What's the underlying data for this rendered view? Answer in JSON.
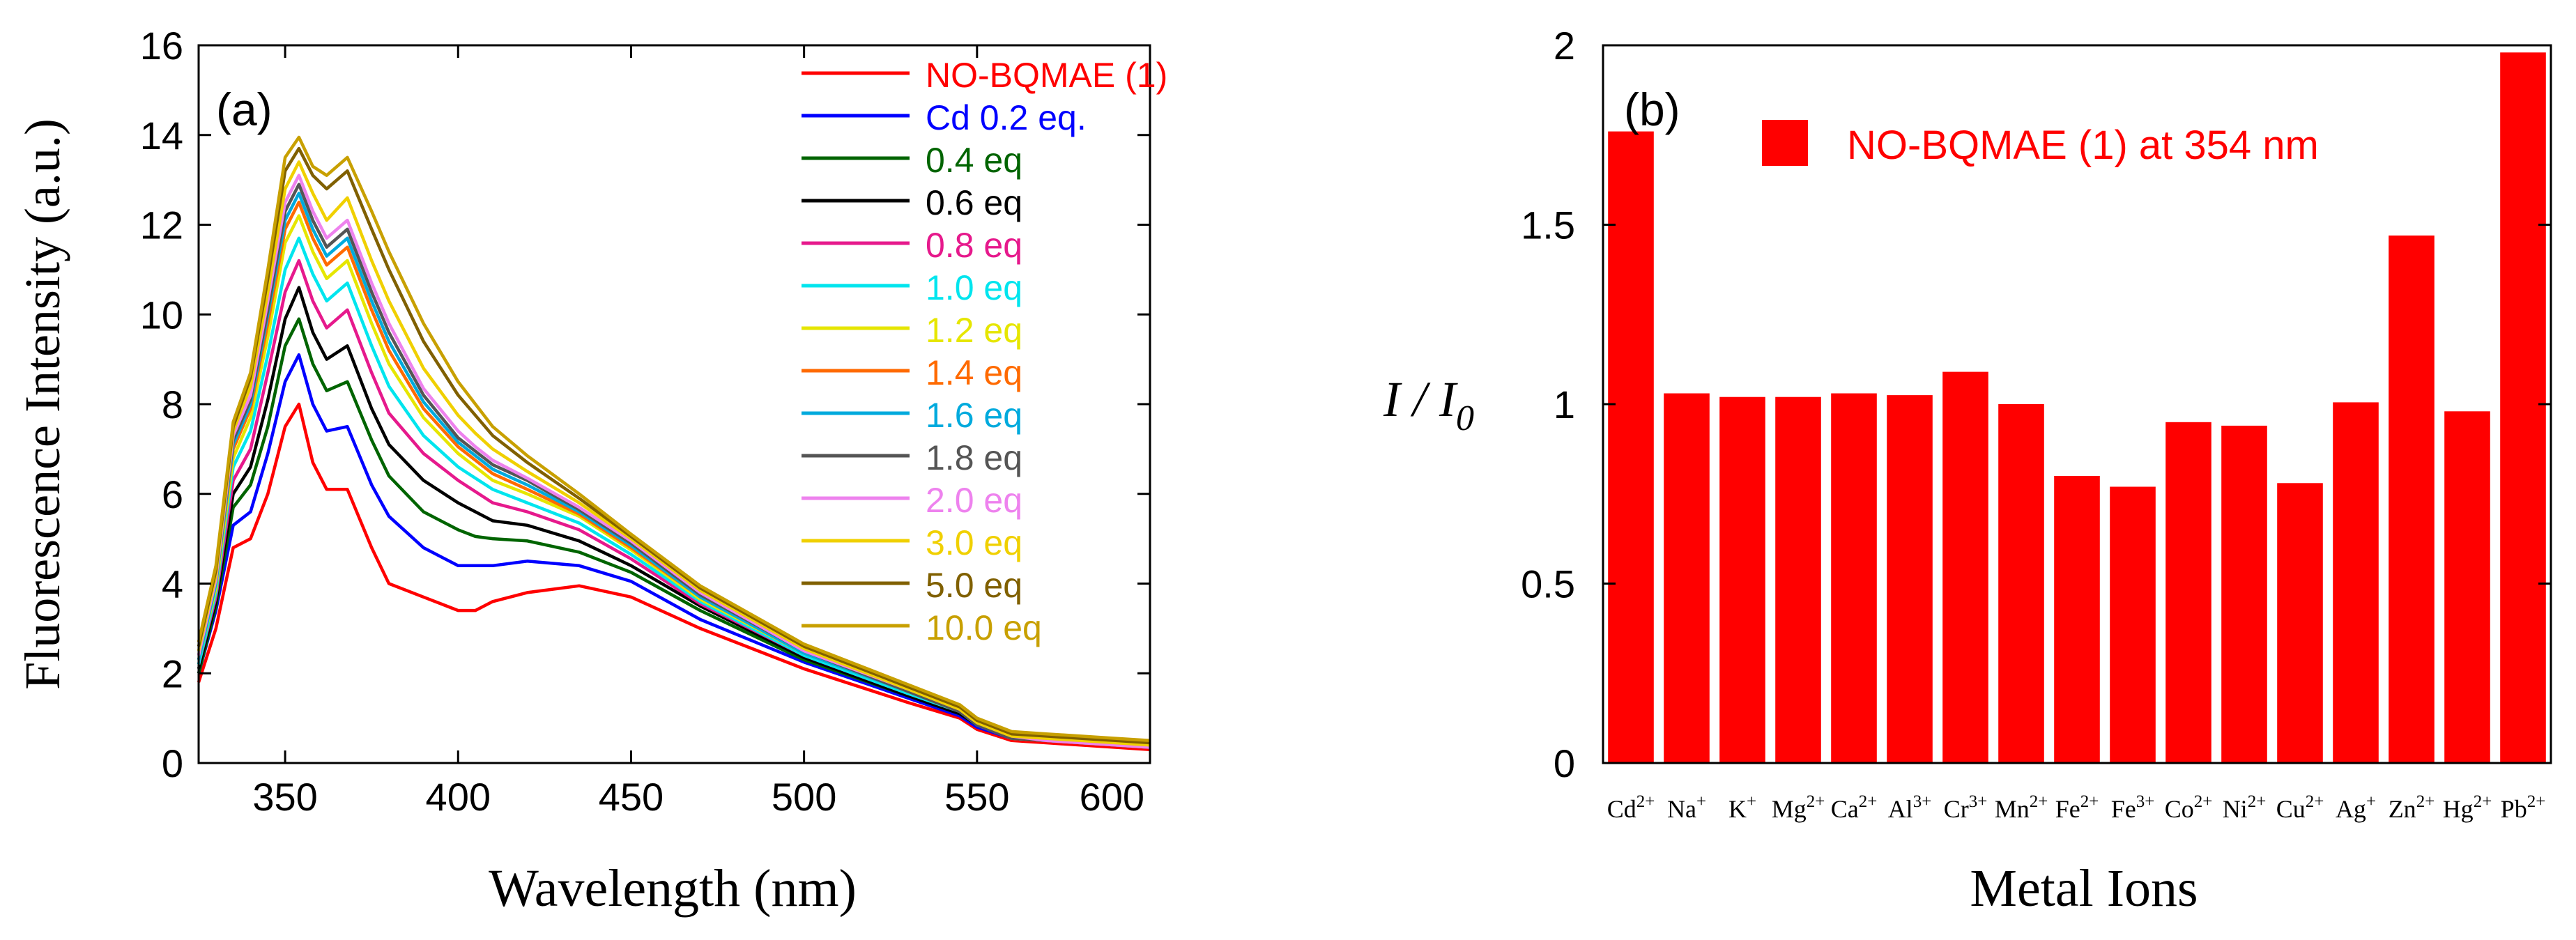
{
  "chart_data": [
    {
      "type": "line",
      "panel_label": "(a)",
      "xlabel": "Wavelength (nm)",
      "ylabel": "Fluorescence Intensity (a.u.)",
      "xlim": [
        325,
        600
      ],
      "ylim": [
        0,
        16
      ],
      "xticks": [
        350,
        400,
        450,
        500,
        550,
        600
      ],
      "yticks": [
        0,
        2,
        4,
        6,
        8,
        10,
        12,
        14,
        16
      ],
      "legend_position": "top-right",
      "x": [
        325,
        330,
        335,
        340,
        345,
        350,
        354,
        358,
        362,
        368,
        375,
        380,
        390,
        400,
        405,
        410,
        420,
        435,
        450,
        470,
        500,
        530,
        545,
        550,
        560,
        570,
        580,
        590,
        600
      ],
      "series": [
        {
          "name": "NO-BQMAE (1)",
          "color": "#ff0000",
          "values": [
            1.8,
            3.0,
            4.8,
            5.0,
            6.0,
            7.5,
            8.0,
            6.7,
            6.1,
            6.1,
            4.8,
            4.0,
            3.7,
            3.4,
            3.4,
            3.6,
            3.8,
            3.95,
            3.7,
            3.0,
            2.1,
            1.35,
            1.0,
            0.75,
            0.5,
            0.45,
            0.4,
            0.35,
            0.3
          ]
        },
        {
          "name": "Cd 0.2 eq.",
          "color": "#0000ff",
          "values": [
            2.0,
            3.4,
            5.3,
            5.6,
            6.9,
            8.5,
            9.1,
            8.0,
            7.4,
            7.5,
            6.2,
            5.5,
            4.8,
            4.4,
            4.4,
            4.4,
            4.5,
            4.4,
            4.05,
            3.2,
            2.25,
            1.45,
            1.05,
            0.8,
            0.55,
            0.5,
            0.45,
            0.4,
            0.35
          ]
        },
        {
          "name": "0.4 eq",
          "color": "#006400",
          "values": [
            2.0,
            3.5,
            5.7,
            6.2,
            7.5,
            9.3,
            9.9,
            8.9,
            8.3,
            8.5,
            7.2,
            6.4,
            5.6,
            5.2,
            5.05,
            5.0,
            4.95,
            4.7,
            4.25,
            3.4,
            2.3,
            1.5,
            1.1,
            0.85,
            0.55,
            0.5,
            0.45,
            0.4,
            0.35
          ]
        },
        {
          "name": "0.6 eq",
          "color": "#000000",
          "values": [
            2.1,
            3.6,
            6.0,
            6.6,
            8.1,
            9.9,
            10.6,
            9.6,
            9.0,
            9.3,
            7.9,
            7.1,
            6.3,
            5.8,
            5.6,
            5.4,
            5.3,
            4.95,
            4.4,
            3.5,
            2.35,
            1.5,
            1.1,
            0.85,
            0.55,
            0.5,
            0.45,
            0.4,
            0.35
          ]
        },
        {
          "name": "0.8 eq",
          "color": "#e6198c",
          "values": [
            2.2,
            3.7,
            6.3,
            7.0,
            8.7,
            10.5,
            11.2,
            10.3,
            9.7,
            10.1,
            8.7,
            7.8,
            6.9,
            6.3,
            6.05,
            5.8,
            5.6,
            5.2,
            4.55,
            3.55,
            2.4,
            1.55,
            1.15,
            0.85,
            0.55,
            0.5,
            0.45,
            0.4,
            0.35
          ]
        },
        {
          "name": "1.0 eq",
          "color": "#00e5ee",
          "values": [
            2.2,
            3.8,
            6.6,
            7.4,
            9.1,
            11.0,
            11.7,
            10.9,
            10.3,
            10.7,
            9.3,
            8.4,
            7.3,
            6.6,
            6.35,
            6.1,
            5.8,
            5.35,
            4.65,
            3.6,
            2.4,
            1.55,
            1.15,
            0.85,
            0.55,
            0.5,
            0.45,
            0.4,
            0.35
          ]
        },
        {
          "name": "1.2 eq",
          "color": "#e6e600",
          "values": [
            2.3,
            3.9,
            6.8,
            7.7,
            9.5,
            11.6,
            12.2,
            11.4,
            10.8,
            11.2,
            9.8,
            8.9,
            7.7,
            6.9,
            6.6,
            6.3,
            6.0,
            5.5,
            4.75,
            3.65,
            2.45,
            1.6,
            1.15,
            0.85,
            0.55,
            0.5,
            0.45,
            0.4,
            0.35
          ]
        },
        {
          "name": "1.4 eq",
          "color": "#ff6a00",
          "values": [
            2.3,
            4.0,
            7.0,
            7.9,
            9.8,
            11.9,
            12.5,
            11.7,
            11.1,
            11.5,
            10.1,
            9.2,
            7.9,
            7.05,
            6.75,
            6.45,
            6.1,
            5.55,
            4.8,
            3.7,
            2.45,
            1.6,
            1.15,
            0.85,
            0.55,
            0.5,
            0.45,
            0.4,
            0.35
          ]
        },
        {
          "name": "1.6 eq",
          "color": "#00aadd",
          "values": [
            2.3,
            4.0,
            7.1,
            8.0,
            10.0,
            12.1,
            12.7,
            11.9,
            11.3,
            11.7,
            10.3,
            9.4,
            8.05,
            7.15,
            6.85,
            6.55,
            6.2,
            5.6,
            4.85,
            3.7,
            2.45,
            1.6,
            1.15,
            0.85,
            0.55,
            0.5,
            0.45,
            0.4,
            0.35
          ]
        },
        {
          "name": "1.8 eq",
          "color": "#555555",
          "values": [
            2.4,
            4.1,
            7.2,
            8.1,
            10.1,
            12.3,
            12.9,
            12.1,
            11.5,
            11.9,
            10.5,
            9.6,
            8.2,
            7.25,
            6.95,
            6.65,
            6.3,
            5.65,
            4.9,
            3.75,
            2.5,
            1.6,
            1.15,
            0.85,
            0.55,
            0.5,
            0.45,
            0.4,
            0.35
          ]
        },
        {
          "name": "2.0 eq",
          "color": "#ee82ee",
          "values": [
            2.4,
            4.1,
            7.3,
            8.2,
            10.3,
            12.5,
            13.1,
            12.3,
            11.7,
            12.1,
            10.7,
            9.8,
            8.35,
            7.4,
            7.05,
            6.75,
            6.35,
            5.7,
            4.95,
            3.8,
            2.5,
            1.65,
            1.2,
            0.9,
            0.6,
            0.5,
            0.45,
            0.4,
            0.35
          ]
        },
        {
          "name": "3.0 eq",
          "color": "#f0d000",
          "values": [
            2.5,
            4.2,
            7.4,
            8.4,
            10.5,
            12.8,
            13.4,
            12.7,
            12.1,
            12.6,
            11.2,
            10.3,
            8.8,
            7.75,
            7.35,
            7.0,
            6.5,
            5.8,
            5.0,
            3.85,
            2.55,
            1.65,
            1.2,
            0.9,
            0.6,
            0.55,
            0.5,
            0.45,
            0.4
          ]
        },
        {
          "name": "5.0 eq",
          "color": "#806000",
          "values": [
            2.6,
            4.3,
            7.5,
            8.6,
            10.8,
            13.2,
            13.7,
            13.1,
            12.8,
            13.2,
            11.9,
            11.0,
            9.4,
            8.2,
            7.75,
            7.3,
            6.7,
            5.9,
            5.05,
            3.9,
            2.6,
            1.7,
            1.25,
            0.95,
            0.65,
            0.6,
            0.55,
            0.5,
            0.45
          ]
        },
        {
          "name": "10.0 eq",
          "color": "#c8a000",
          "values": [
            2.7,
            4.4,
            7.6,
            8.7,
            11.0,
            13.5,
            13.95,
            13.3,
            13.1,
            13.5,
            12.3,
            11.4,
            9.8,
            8.5,
            8.0,
            7.5,
            6.85,
            6.0,
            5.1,
            3.95,
            2.65,
            1.75,
            1.3,
            1.0,
            0.7,
            0.65,
            0.6,
            0.55,
            0.5
          ]
        }
      ]
    },
    {
      "type": "bar",
      "panel_label": "(b)",
      "xlabel": "Metal Ions",
      "ylabel": "I / I0",
      "ylabel_parts": {
        "main": "I / I",
        "sub": "0"
      },
      "ylim": [
        0,
        2
      ],
      "yticks": [
        0,
        0.5,
        1,
        1.5,
        2
      ],
      "ytick_labels": [
        "0",
        "0.5",
        "1",
        "1.5",
        "2"
      ],
      "legend": "NO-BQMAE (1) at 354 nm",
      "legend_position": "top",
      "bar_color": "#ff0000",
      "categories": [
        {
          "base": "Cd",
          "charge": "2+"
        },
        {
          "base": "Na",
          "charge": "+"
        },
        {
          "base": "K",
          "charge": "+"
        },
        {
          "base": "Mg",
          "charge": "2+"
        },
        {
          "base": "Ca",
          "charge": "2+"
        },
        {
          "base": "Al",
          "charge": "3+"
        },
        {
          "base": "Cr",
          "charge": "3+"
        },
        {
          "base": "Mn",
          "charge": "2+"
        },
        {
          "base": "Fe",
          "charge": "2+"
        },
        {
          "base": "Fe",
          "charge": "3+"
        },
        {
          "base": "Co",
          "charge": "2+"
        },
        {
          "base": "Ni",
          "charge": "2+"
        },
        {
          "base": "Cu",
          "charge": "2+"
        },
        {
          "base": "Ag",
          "charge": "+"
        },
        {
          "base": "Zn",
          "charge": "2+"
        },
        {
          "base": "Hg",
          "charge": "2+"
        },
        {
          "base": "Pb",
          "charge": "2+"
        }
      ],
      "values": [
        1.76,
        1.03,
        1.02,
        1.02,
        1.03,
        1.025,
        1.09,
        1.0,
        0.8,
        0.77,
        0.95,
        0.94,
        0.78,
        1.005,
        1.47,
        0.98,
        1.98
      ]
    }
  ]
}
